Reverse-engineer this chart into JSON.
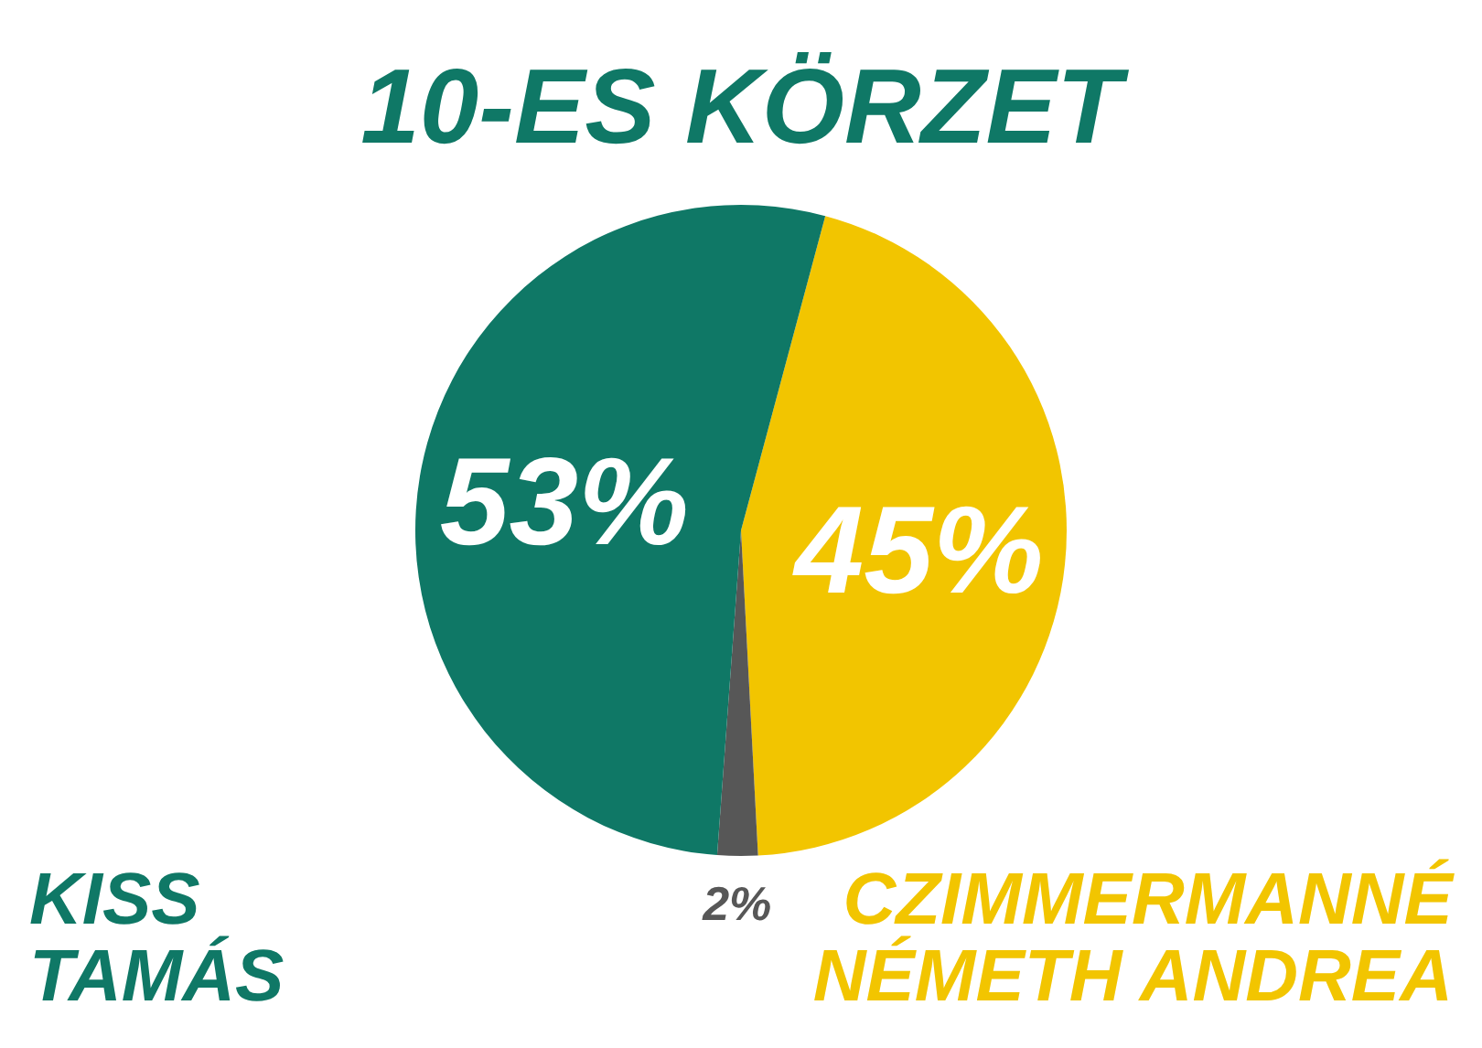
{
  "chart_data": {
    "type": "pie",
    "title": "10-ES KÖRZET",
    "categories": [
      "CZIMMERMANNÉ NÉMETH ANDREA",
      null,
      "KISS TAMÁS"
    ],
    "values": [
      45,
      2,
      53
    ],
    "colors": [
      "#f2c500",
      "#575757",
      "#0f7866"
    ],
    "value_labels": [
      "45%",
      "2%",
      "53%"
    ]
  }
}
